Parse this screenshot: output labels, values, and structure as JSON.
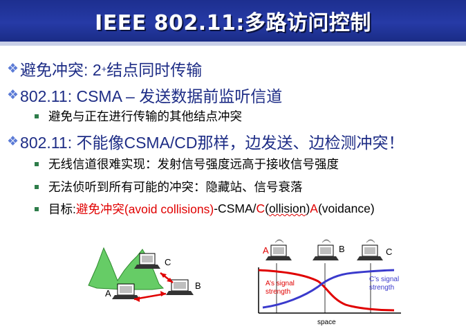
{
  "slide": {
    "title": "IEEE 802.11:多路访问控制",
    "bullets": [
      {
        "lead": "避免冲突: 2",
        "sup": "+",
        "rest": "结点同时传输"
      },
      {
        "text": "802.11: CSMA – 发送数据前监听信道"
      },
      {
        "text": "802.11: 不能像CSMA/CD那样，边发送、边检测冲突！"
      }
    ],
    "sub_bullets_1": [
      "避免与正在进行传输的其他结点冲突"
    ],
    "sub_bullets_2": [
      "无线信道很难实现：发射信号强度远高于接收信号强度",
      "无法侦听到所有可能的冲突：隐藏站、信号衰落"
    ],
    "goal": {
      "prefix": "目标: ",
      "red1": "避免冲突(avoid collisions)",
      "mid1": "-CSMA/",
      "red2": "C",
      "mid2": "(",
      "wavy": "ollision",
      "mid3": ")",
      "red3": "A",
      "mid4": "(voidance)"
    }
  },
  "left_diagram": {
    "labels": {
      "a": "A",
      "b": "B",
      "c": "C"
    },
    "colors": {
      "mountain": "#66cc66",
      "arrow": "#e00000"
    }
  },
  "right_diagram": {
    "labels": {
      "a": "A",
      "b": "B",
      "c": "C"
    },
    "curve_a_label_1": "A’s signal",
    "curve_a_label_2": "strength",
    "curve_c_label_1": "C’s signal",
    "curve_c_label_2": "strength",
    "xlabel": "space",
    "colors": {
      "curve_a": "#e00000",
      "curve_c": "#3a3acc"
    }
  }
}
